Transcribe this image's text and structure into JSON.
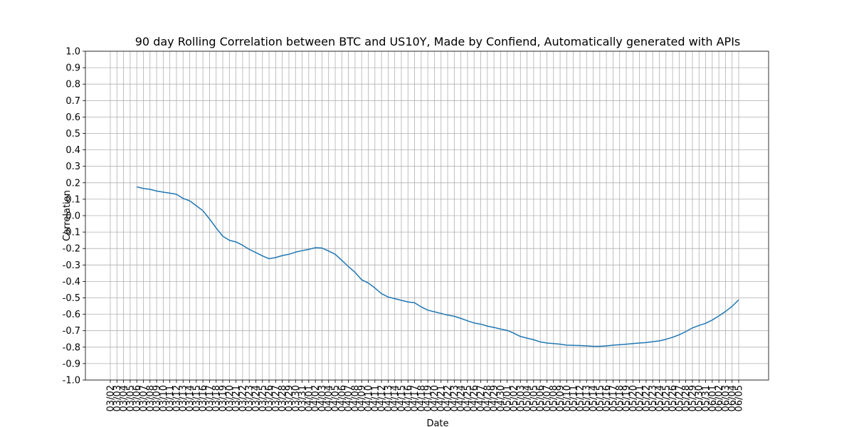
{
  "chart_data": {
    "type": "line",
    "title": "90 day Rolling Correlation between BTC and US10Y, Made by Confiend, Automatically generated with APIs",
    "xlabel": "Date",
    "ylabel": "Correlation",
    "categories": [
      "03/02",
      "03/03",
      "03/04",
      "03/05",
      "03/06",
      "03/07",
      "03/08",
      "03/09",
      "03/10",
      "03/11",
      "03/12",
      "03/13",
      "03/14",
      "03/15",
      "03/16",
      "03/17",
      "03/18",
      "03/19",
      "03/20",
      "03/21",
      "03/22",
      "03/23",
      "03/24",
      "03/25",
      "03/26",
      "03/27",
      "03/28",
      "03/29",
      "03/30",
      "03/31",
      "04/01",
      "04/02",
      "04/03",
      "04/04",
      "04/05",
      "04/06",
      "04/07",
      "04/08",
      "04/09",
      "04/10",
      "04/11",
      "04/12",
      "04/13",
      "04/14",
      "04/15",
      "04/16",
      "04/17",
      "04/18",
      "04/19",
      "04/20",
      "04/21",
      "04/22",
      "04/23",
      "04/24",
      "04/25",
      "04/26",
      "04/27",
      "04/28",
      "04/29",
      "04/30",
      "05/01",
      "05/02",
      "05/03",
      "05/04",
      "05/05",
      "05/06",
      "05/07",
      "05/08",
      "05/09",
      "05/10",
      "05/11",
      "05/12",
      "05/13",
      "05/14",
      "05/15",
      "05/16",
      "05/17",
      "05/18",
      "05/19",
      "05/20",
      "05/21",
      "05/22",
      "05/23",
      "05/24",
      "05/25",
      "05/26",
      "05/27",
      "05/28",
      "05/29",
      "05/30",
      "05/31",
      "06/01",
      "06/02",
      "06/03",
      "06/04",
      "06/05"
    ],
    "series": [
      {
        "name": "Correlation",
        "color": "#1f77b4",
        "values": [
          null,
          null,
          null,
          null,
          0.175,
          0.165,
          0.16,
          0.15,
          0.143,
          0.137,
          0.13,
          0.105,
          0.09,
          0.06,
          0.03,
          -0.02,
          -0.075,
          -0.125,
          -0.15,
          -0.16,
          -0.18,
          -0.205,
          -0.225,
          -0.245,
          -0.262,
          -0.255,
          -0.243,
          -0.235,
          -0.222,
          -0.213,
          -0.205,
          -0.195,
          -0.197,
          -0.215,
          -0.235,
          -0.272,
          -0.31,
          -0.345,
          -0.39,
          -0.41,
          -0.44,
          -0.475,
          -0.495,
          -0.505,
          -0.515,
          -0.525,
          -0.53,
          -0.555,
          -0.575,
          -0.585,
          -0.595,
          -0.605,
          -0.612,
          -0.625,
          -0.64,
          -0.653,
          -0.66,
          -0.672,
          -0.68,
          -0.69,
          -0.698,
          -0.715,
          -0.735,
          -0.745,
          -0.755,
          -0.768,
          -0.775,
          -0.778,
          -0.782,
          -0.788,
          -0.789,
          -0.79,
          -0.792,
          -0.795,
          -0.795,
          -0.792,
          -0.788,
          -0.785,
          -0.782,
          -0.778,
          -0.775,
          -0.772,
          -0.767,
          -0.762,
          -0.752,
          -0.74,
          -0.725,
          -0.705,
          -0.683,
          -0.668,
          -0.655,
          -0.635,
          -0.61,
          -0.583,
          -0.552,
          -0.512
        ]
      }
    ],
    "ylim": [
      -1,
      1
    ],
    "yticks": [
      {
        "value": -1,
        "label": "-1.0"
      },
      -0.9,
      -0.8,
      -0.7,
      -0.6,
      -0.5,
      -0.4,
      -0.3,
      -0.2,
      -0.1,
      {
        "value": 0,
        "label": "0.0"
      },
      0.1,
      0.2,
      0.3,
      0.4,
      0.5,
      0.6,
      0.7,
      0.8,
      0.9,
      {
        "value": 1,
        "label": "1.0"
      }
    ],
    "grid": true
  }
}
